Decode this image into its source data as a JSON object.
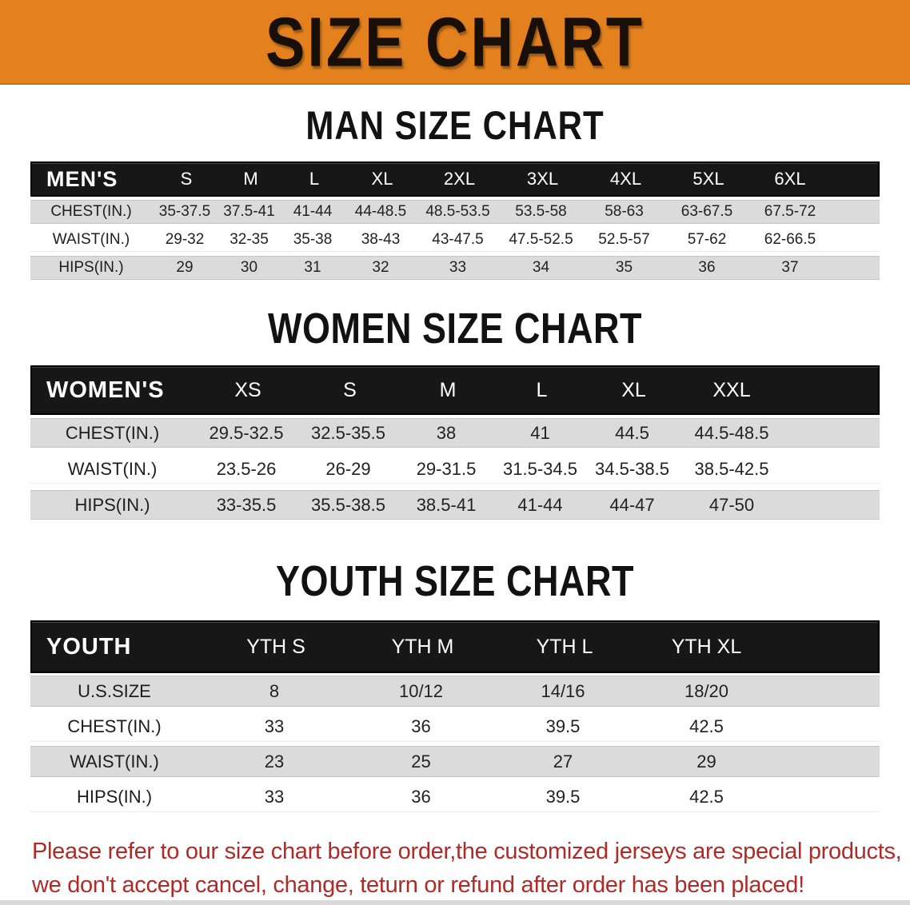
{
  "banner": {
    "title": "SIZE CHART"
  },
  "colors": {
    "banner_bg": "#E2811E",
    "header_bg": "#171717",
    "row_gray": "#DBDBDB",
    "disclaimer_red": "#B02A28"
  },
  "sections": [
    {
      "heading": "MAN SIZE CHART",
      "table": {
        "header_label": "MEN'S",
        "columns": [
          "S",
          "M",
          "L",
          "XL",
          "2XL",
          "3XL",
          "4XL",
          "5XL",
          "6XL"
        ],
        "rows": [
          {
            "label": "CHEST(IN.)",
            "values": [
              "35-37.5",
              "37.5-41",
              "41-44",
              "44-48.5",
              "48.5-53.5",
              "53.5-58",
              "58-63",
              "63-67.5",
              "67.5-72"
            ]
          },
          {
            "label": "WAIST(IN.)",
            "values": [
              "29-32",
              "32-35",
              "35-38",
              "38-43",
              "43-47.5",
              "47.5-52.5",
              "52.5-57",
              "57-62",
              "62-66.5"
            ]
          },
          {
            "label": "HIPS(IN.)",
            "values": [
              "29",
              "30",
              "31",
              "32",
              "33",
              "34",
              "35",
              "36",
              "37"
            ]
          }
        ]
      }
    },
    {
      "heading": "WOMEN SIZE CHART",
      "table": {
        "header_label": "WOMEN'S",
        "columns": [
          "XS",
          "S",
          "M",
          "L",
          "XL",
          "XXL"
        ],
        "rows": [
          {
            "label": "CHEST(IN.)",
            "values": [
              "29.5-32.5",
              "32.5-35.5",
              "38",
              "41",
              "44.5",
              "44.5-48.5"
            ]
          },
          {
            "label": "WAIST(IN.)",
            "values": [
              "23.5-26",
              "26-29",
              "29-31.5",
              "31.5-34.5",
              "34.5-38.5",
              "38.5-42.5"
            ]
          },
          {
            "label": "HIPS(IN.)",
            "values": [
              "33-35.5",
              "35.5-38.5",
              "38.5-41",
              "41-44",
              "44-47",
              "47-50"
            ]
          }
        ]
      }
    },
    {
      "heading": "YOUTH SIZE CHART",
      "table": {
        "header_label": "YOUTH",
        "columns": [
          "YTH S",
          "YTH M",
          "YTH L",
          "YTH XL"
        ],
        "rows": [
          {
            "label": "U.S.SIZE",
            "values": [
              "8",
              "10/12",
              "14/16",
              "18/20"
            ]
          },
          {
            "label": "CHEST(IN.)",
            "values": [
              "33",
              "36",
              "39.5",
              "42.5"
            ]
          },
          {
            "label": "WAIST(IN.)",
            "values": [
              "23",
              "25",
              "27",
              "29"
            ]
          },
          {
            "label": "HIPS(IN.)",
            "values": [
              "33",
              "36",
              "39.5",
              "42.5"
            ]
          }
        ]
      }
    }
  ],
  "disclaimer": {
    "line1": "Please refer to our size chart before order,the customized jerseys are special products,",
    "line2": "we don't accept cancel, change, teturn or refund after order has been placed!"
  }
}
